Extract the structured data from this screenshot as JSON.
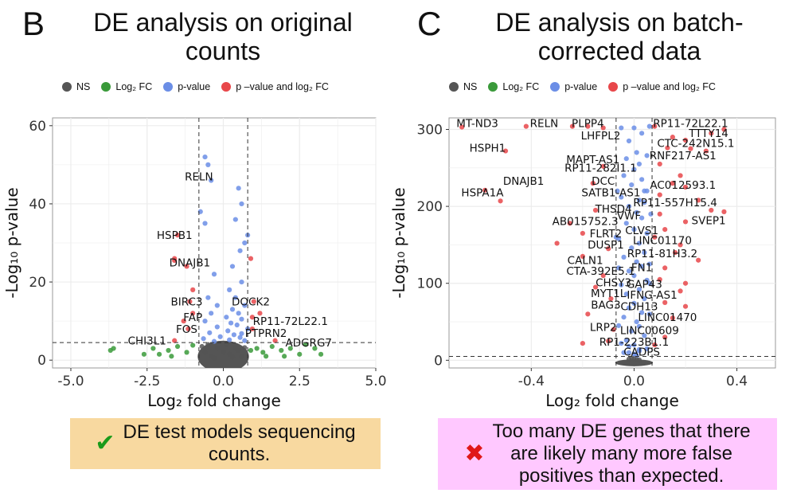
{
  "panels": [
    {
      "letter": "B",
      "title_lines": [
        "DE analysis on original",
        "counts"
      ],
      "legend": [
        {
          "label": "NS",
          "color": "#555555"
        },
        {
          "label": "Log₂ FC",
          "color": "#3a9a3a"
        },
        {
          "label": "p-value",
          "color": "#6b8ee6"
        },
        {
          "label": "p –value and log₂ FC",
          "color": "#e8474a"
        }
      ],
      "note": {
        "icon": "✔",
        "icon_color": "#1a9a1a",
        "text_lines": [
          "DE test models sequencing",
          "counts."
        ],
        "background": "#f8d9a0"
      }
    },
    {
      "letter": "C",
      "title_lines": [
        "DE analysis on batch-",
        "corrected data"
      ],
      "legend": [
        {
          "label": "NS",
          "color": "#555555"
        },
        {
          "label": "Log₂ FC",
          "color": "#3a9a3a"
        },
        {
          "label": "p-value",
          "color": "#6b8ee6"
        },
        {
          "label": "p –value and log₂ FC",
          "color": "#e8474a"
        }
      ],
      "note": {
        "icon": "✖",
        "icon_color": "#e01818",
        "text_lines": [
          "Too many DE genes that there",
          "are likely many more false",
          "positives than expected."
        ],
        "background": "#ffc8ff"
      }
    }
  ],
  "chart_data": [
    {
      "type": "scatter",
      "subtype": "volcano",
      "xlabel": "Log₂ fold change",
      "ylabel": "-Log₁₀ p-value",
      "xlim": [
        -5.6,
        5.0
      ],
      "ylim": [
        -2,
        62
      ],
      "xticks": [
        -5.0,
        -2.5,
        0.0,
        2.5,
        5.0
      ],
      "xtick_labels": [
        "-5.0",
        "-2.5",
        "0.0",
        "2.5",
        "5.0"
      ],
      "yticks": [
        0,
        20,
        40,
        60
      ],
      "ytick_labels": [
        "0",
        "20",
        "40",
        "60"
      ],
      "fc_cutoff": 0.8,
      "p_cutoff": 4.5,
      "grid": true,
      "colors": {
        "NS": "#555555",
        "FC": "#3a9a3a",
        "P": "#6b8ee6",
        "PFC": "#e8474a"
      },
      "points": [
        [
          -0.6,
          52
        ],
        [
          -0.5,
          50
        ],
        [
          -0.4,
          46
        ],
        [
          -0.75,
          38
        ],
        [
          -0.6,
          35
        ],
        [
          0.5,
          44
        ],
        [
          0.6,
          40
        ],
        [
          0.4,
          36
        ],
        [
          0.7,
          30
        ],
        [
          0.55,
          28
        ],
        [
          0.8,
          32
        ],
        [
          0.9,
          26
        ],
        [
          0.3,
          24
        ],
        [
          -0.3,
          22
        ],
        [
          0.6,
          20
        ],
        [
          -0.5,
          16
        ],
        [
          0.2,
          18
        ],
        [
          0.4,
          16
        ],
        [
          -0.2,
          14
        ],
        [
          0.7,
          14
        ],
        [
          0.3,
          13
        ],
        [
          0.5,
          12
        ],
        [
          -0.4,
          12
        ],
        [
          0.1,
          11
        ],
        [
          0.6,
          10.5
        ],
        [
          -0.6,
          10
        ],
        [
          0.25,
          9.5
        ],
        [
          0.45,
          9
        ],
        [
          -0.2,
          8.5
        ],
        [
          0.8,
          8
        ],
        [
          0.15,
          7.5
        ],
        [
          -0.45,
          7
        ],
        [
          0.6,
          6.8
        ],
        [
          0.35,
          6.5
        ],
        [
          -0.1,
          6
        ],
        [
          0.55,
          5.8
        ],
        [
          -0.65,
          5.5
        ],
        [
          0.2,
          5.2
        ],
        [
          0.7,
          5.0
        ],
        [
          -0.3,
          4.8
        ],
        [
          -1.6,
          25.5
        ],
        [
          -1.6,
          26
        ],
        [
          -1.2,
          24
        ],
        [
          -1.5,
          32
        ],
        [
          -1.0,
          18
        ],
        [
          -1.1,
          15
        ],
        [
          -1.0,
          12
        ],
        [
          -1.3,
          10
        ],
        [
          -1.15,
          8
        ],
        [
          -1.6,
          5
        ],
        [
          1.7,
          5
        ],
        [
          0.95,
          8
        ],
        [
          0.95,
          11
        ],
        [
          1.0,
          15
        ],
        [
          1.2,
          12
        ],
        [
          -3.6,
          3
        ],
        [
          -3.7,
          2.5
        ],
        [
          -2.3,
          3
        ],
        [
          -2.1,
          1.5
        ],
        [
          -1.8,
          2.5
        ],
        [
          -1.5,
          3.5
        ],
        [
          -1.2,
          2
        ],
        [
          -1.0,
          3.8
        ],
        [
          -2.6,
          1.5
        ],
        [
          -1.7,
          1
        ],
        [
          1.1,
          3
        ],
        [
          1.3,
          2
        ],
        [
          1.6,
          3.5
        ],
        [
          1.9,
          2.5
        ],
        [
          2.2,
          3
        ],
        [
          2.5,
          1.5
        ],
        [
          2.7,
          4
        ],
        [
          3.0,
          3
        ],
        [
          3.2,
          1.5
        ],
        [
          1.4,
          1
        ],
        [
          2.0,
          1
        ],
        [
          0.9,
          2.5
        ],
        [
          -0.6,
          2
        ],
        [
          -0.4,
          1
        ],
        [
          -0.2,
          3
        ],
        [
          0,
          2
        ],
        [
          0.2,
          1.5
        ],
        [
          0.4,
          3
        ],
        [
          0.6,
          1
        ],
        [
          -0.7,
          3.5
        ],
        [
          -0.3,
          0.5
        ],
        [
          0.1,
          4
        ],
        [
          0.3,
          0.8
        ],
        [
          0.5,
          2.5
        ],
        [
          -0.5,
          4
        ],
        [
          0.7,
          3.2
        ]
      ],
      "labels": [
        {
          "text": "RELN",
          "x": -0.8,
          "y": 46
        },
        {
          "text": "HSPB1",
          "x": -1.6,
          "y": 31
        },
        {
          "text": "DNAJB1",
          "x": -1.1,
          "y": 24
        },
        {
          "text": "DOCK2",
          "x": 0.9,
          "y": 14
        },
        {
          "text": "BIRC3",
          "x": -1.2,
          "y": 14
        },
        {
          "text": "FAP",
          "x": -1.0,
          "y": 10
        },
        {
          "text": "RP11-72L22.1",
          "x": 2.2,
          "y": 9
        },
        {
          "text": "FOS",
          "x": -1.2,
          "y": 7
        },
        {
          "text": "PTPRN2",
          "x": 1.4,
          "y": 6
        },
        {
          "text": "CHI3L1",
          "x": -2.5,
          "y": 4
        },
        {
          "text": "ADGRG7",
          "x": 2.8,
          "y": 3.5
        }
      ]
    },
    {
      "type": "scatter",
      "subtype": "volcano",
      "xlabel": "Log₂ fold change",
      "ylabel": "-Log₁₀ p-value",
      "xlim": [
        -0.72,
        0.55
      ],
      "ylim": [
        -10,
        315
      ],
      "xticks": [
        -0.4,
        0.0,
        0.4
      ],
      "xtick_labels": [
        "-0.4",
        "0.0",
        "0.4"
      ],
      "yticks": [
        0,
        100,
        200,
        300
      ],
      "ytick_labels": [
        "0",
        "100",
        "200",
        "300"
      ],
      "fc_cutoff": 0.07,
      "p_cutoff": 5,
      "grid": true,
      "colors": {
        "NS": "#555555",
        "FC": "#3a9a3a",
        "P": "#6b8ee6",
        "PFC": "#e8474a"
      },
      "points": [
        [
          -0.67,
          303
        ],
        [
          -0.42,
          304
        ],
        [
          -0.24,
          304
        ],
        [
          -0.18,
          304
        ],
        [
          0.06,
          304
        ],
        [
          0.08,
          304
        ],
        [
          0.35,
          300
        ],
        [
          0.3,
          295
        ],
        [
          0.15,
          290
        ],
        [
          0.2,
          286
        ],
        [
          0.22,
          275
        ],
        [
          0.13,
          276
        ],
        [
          0.28,
          272
        ],
        [
          -0.5,
          272
        ],
        [
          0.05,
          266
        ],
        [
          0.1,
          255
        ],
        [
          -0.12,
          252
        ],
        [
          0.15,
          230
        ],
        [
          -0.16,
          230
        ],
        [
          0.05,
          220
        ],
        [
          0.2,
          225
        ],
        [
          0.18,
          240
        ],
        [
          -0.58,
          221
        ],
        [
          -0.52,
          207
        ],
        [
          0.1,
          215
        ],
        [
          0.04,
          205
        ],
        [
          0.25,
          208
        ],
        [
          0.3,
          195
        ],
        [
          0.35,
          193
        ],
        [
          0.1,
          190
        ],
        [
          -0.15,
          195
        ],
        [
          0.2,
          180
        ],
        [
          -0.25,
          178
        ],
        [
          0.12,
          170
        ],
        [
          -0.2,
          165
        ],
        [
          0.08,
          160
        ],
        [
          0.18,
          150
        ],
        [
          -0.3,
          152
        ],
        [
          -0.1,
          145
        ],
        [
          0.16,
          140
        ],
        [
          0.25,
          130
        ],
        [
          -0.2,
          135
        ],
        [
          0.06,
          125
        ],
        [
          0.12,
          120
        ],
        [
          -0.12,
          110
        ],
        [
          0.1,
          105
        ],
        [
          0.2,
          100
        ],
        [
          -0.15,
          95
        ],
        [
          0.18,
          90
        ],
        [
          -0.09,
          80
        ],
        [
          0.12,
          75
        ],
        [
          0.2,
          70
        ],
        [
          -0.18,
          60
        ],
        [
          0.15,
          55
        ],
        [
          -0.08,
          40
        ],
        [
          0.12,
          30
        ],
        [
          -0.1,
          25
        ],
        [
          -0.2,
          22
        ],
        [
          0.08,
          20
        ],
        [
          -0.04,
          10
        ],
        [
          0.0,
          8
        ],
        [
          0.02,
          12
        ],
        [
          -0.02,
          18
        ],
        [
          0.05,
          15
        ],
        [
          -0.05,
          22
        ],
        [
          -0.12,
          302
        ],
        [
          -0.05,
          302
        ],
        [
          0.0,
          302
        ],
        [
          0.03,
          295
        ],
        [
          -0.02,
          285
        ],
        [
          0.01,
          270
        ],
        [
          -0.03,
          262
        ],
        [
          0.02,
          255
        ],
        [
          0.0,
          248
        ],
        [
          -0.04,
          240
        ],
        [
          0.03,
          235
        ],
        [
          -0.01,
          228
        ],
        [
          0.04,
          220
        ],
        [
          -0.05,
          212
        ],
        [
          0.02,
          208
        ],
        [
          -0.02,
          200
        ],
        [
          0.01,
          192
        ],
        [
          0.03,
          185
        ],
        [
          -0.03,
          178
        ],
        [
          0.0,
          170
        ],
        [
          0.05,
          165
        ],
        [
          -0.06,
          158
        ],
        [
          0.02,
          152
        ],
        [
          -0.01,
          146
        ],
        [
          0.04,
          140
        ],
        [
          -0.04,
          134
        ],
        [
          0.01,
          128
        ],
        [
          0.03,
          122
        ],
        [
          -0.02,
          116
        ],
        [
          0.0,
          110
        ],
        [
          0.05,
          104
        ],
        [
          -0.05,
          98
        ],
        [
          0.02,
          92
        ],
        [
          -0.03,
          86
        ],
        [
          0.04,
          80
        ],
        [
          0.0,
          74
        ],
        [
          -0.02,
          68
        ],
        [
          0.03,
          62
        ],
        [
          -0.04,
          56
        ],
        [
          0.01,
          50
        ],
        [
          0.02,
          44
        ],
        [
          -0.01,
          38
        ],
        [
          0.04,
          32
        ],
        [
          -0.03,
          26
        ],
        [
          0.0,
          20
        ],
        [
          0.02,
          14
        ],
        [
          -0.02,
          10
        ],
        [
          0.01,
          6
        ],
        [
          -0.06,
          120
        ],
        [
          0.06,
          60
        ],
        [
          -0.06,
          45
        ],
        [
          0.06,
          100
        ],
        [
          -0.07,
          160
        ],
        [
          0.065,
          190
        ],
        [
          -0.065,
          220
        ],
        [
          0.0,
          2
        ],
        [
          0.01,
          1
        ],
        [
          -0.01,
          3
        ],
        [
          0.02,
          0.5
        ],
        [
          -0.02,
          1.5
        ]
      ],
      "labels": [
        {
          "text": "MT-ND3",
          "x": -0.61,
          "y": 303
        },
        {
          "text": "RELN",
          "x": -0.35,
          "y": 303
        },
        {
          "text": "PLPP4",
          "x": -0.18,
          "y": 303
        },
        {
          "text": "RP11-72L22.1",
          "x": 0.22,
          "y": 303
        },
        {
          "text": "TTTY14",
          "x": 0.29,
          "y": 290
        },
        {
          "text": "LHFPL2",
          "x": -0.13,
          "y": 287
        },
        {
          "text": "CTC-242N15.1",
          "x": 0.24,
          "y": 277
        },
        {
          "text": "HSPH1",
          "x": -0.57,
          "y": 271
        },
        {
          "text": "RNF217-AS1",
          "x": 0.19,
          "y": 261
        },
        {
          "text": "MAPT-AS1",
          "x": -0.16,
          "y": 256
        },
        {
          "text": "RP11-282I1.1",
          "x": -0.13,
          "y": 245
        },
        {
          "text": "DNAJB1",
          "x": -0.43,
          "y": 228
        },
        {
          "text": "DCC",
          "x": -0.12,
          "y": 228
        },
        {
          "text": "AC012593.1",
          "x": 0.19,
          "y": 223
        },
        {
          "text": "SATB1-AS1",
          "x": -0.09,
          "y": 213
        },
        {
          "text": "HSPA1A",
          "x": -0.59,
          "y": 213
        },
        {
          "text": "RP11-557H15.4",
          "x": 0.16,
          "y": 200
        },
        {
          "text": "THSD4",
          "x": -0.08,
          "y": 192
        },
        {
          "text": "VWF",
          "x": -0.02,
          "y": 183
        },
        {
          "text": "SVEP1",
          "x": 0.29,
          "y": 177
        },
        {
          "text": "AB015752.3",
          "x": -0.19,
          "y": 176
        },
        {
          "text": "CLVS1",
          "x": 0.03,
          "y": 164
        },
        {
          "text": "FLRT2",
          "x": -0.11,
          "y": 160
        },
        {
          "text": "LINC01170",
          "x": 0.11,
          "y": 151
        },
        {
          "text": "DUSP1",
          "x": -0.11,
          "y": 145
        },
        {
          "text": "RP11-81H3.2",
          "x": 0.11,
          "y": 134
        },
        {
          "text": "CALN1",
          "x": -0.19,
          "y": 125
        },
        {
          "text": "FN1",
          "x": 0.03,
          "y": 116
        },
        {
          "text": "CTA-392E5.1",
          "x": -0.13,
          "y": 111
        },
        {
          "text": "CHSY3",
          "x": -0.08,
          "y": 96
        },
        {
          "text": "GAP43",
          "x": 0.04,
          "y": 94
        },
        {
          "text": "MYT1L",
          "x": -0.1,
          "y": 82
        },
        {
          "text": "IFNG-AS1",
          "x": 0.07,
          "y": 80
        },
        {
          "text": "BAG3",
          "x": -0.11,
          "y": 67
        },
        {
          "text": "CDH13",
          "x": 0.02,
          "y": 65
        },
        {
          "text": "LINC01470",
          "x": 0.13,
          "y": 51
        },
        {
          "text": "LRP2",
          "x": -0.12,
          "y": 38
        },
        {
          "text": "LINC00609",
          "x": 0.06,
          "y": 34
        },
        {
          "text": "RP1-223B1.1",
          "x": 0.0,
          "y": 19
        },
        {
          "text": "CADPS",
          "x": 0.03,
          "y": 6
        }
      ]
    }
  ]
}
